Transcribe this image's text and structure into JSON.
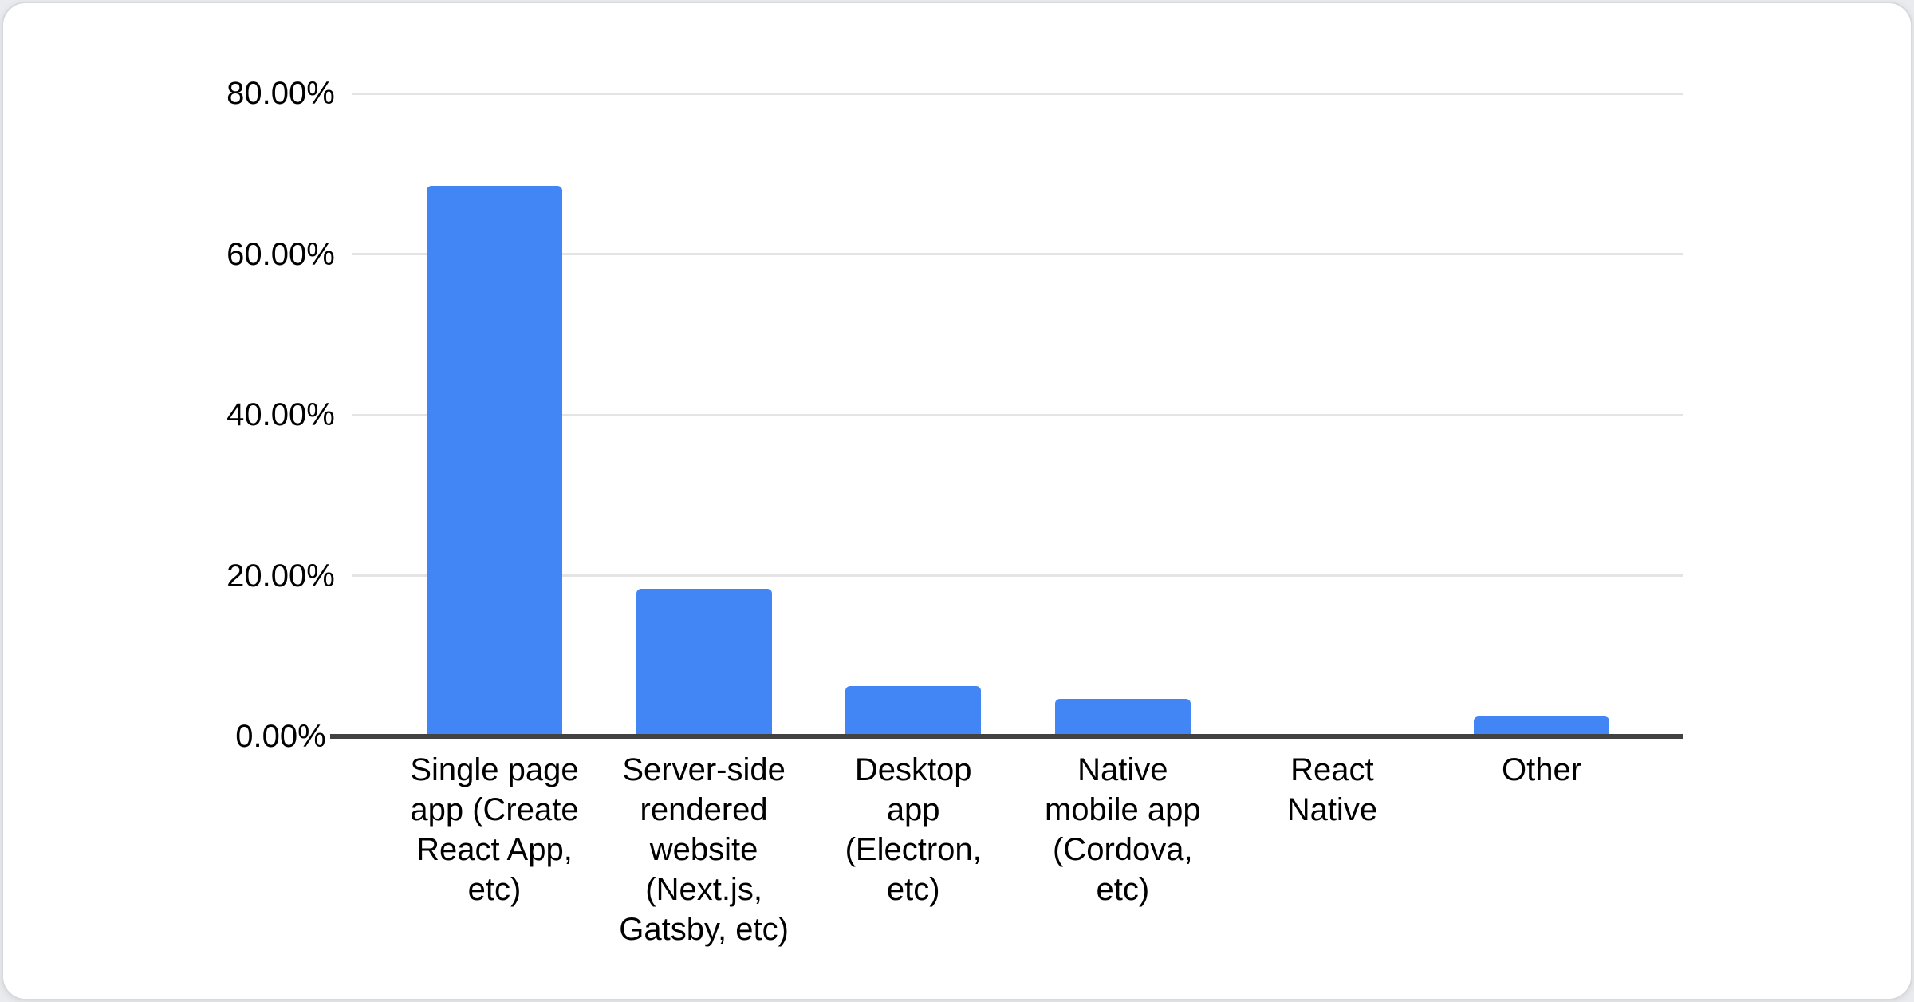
{
  "page": {
    "background_color": "#e9ebee",
    "card_background": "#ffffff",
    "card_border_color": "#d6d9dd"
  },
  "chart_data": {
    "type": "bar",
    "title": "",
    "categories": [
      {
        "text": "Single page app (Create React App, etc)",
        "lines": [
          "Single page",
          "app (Create",
          "React App,",
          "etc)"
        ]
      },
      {
        "text": "Server-side rendered website (Next.js, Gatsby, etc)",
        "lines": [
          "Server-side",
          "rendered",
          "website",
          "(Next.js,",
          "Gatsby, etc)"
        ]
      },
      {
        "text": "Desktop app (Electron, etc)",
        "lines": [
          "Desktop",
          "app",
          "(Electron,",
          "etc)"
        ]
      },
      {
        "text": "Native mobile app (Cordova, etc)",
        "lines": [
          "Native",
          "mobile app",
          "(Cordova,",
          "etc)"
        ]
      },
      {
        "text": "React Native",
        "lines": [
          "React",
          "Native"
        ]
      },
      {
        "text": "Other",
        "lines": [
          "Other"
        ]
      }
    ],
    "values": [
      68.5,
      18.4,
      6.3,
      4.7,
      0,
      2.5
    ],
    "unit": "%",
    "ylim": [
      0,
      80
    ],
    "y_ticks": [
      {
        "label": "80.00%",
        "value": 80
      },
      {
        "label": "60.00%",
        "value": 60
      },
      {
        "label": "40.00%",
        "value": 40
      },
      {
        "label": "20.00%",
        "value": 20
      },
      {
        "label": "0.00%",
        "value": 0
      }
    ],
    "grid": true,
    "legend_position": "none",
    "bar_color": "#4285f4",
    "gridline_color": "#e4e4e4",
    "axis_color": "#424242",
    "text_color": "#000000"
  }
}
